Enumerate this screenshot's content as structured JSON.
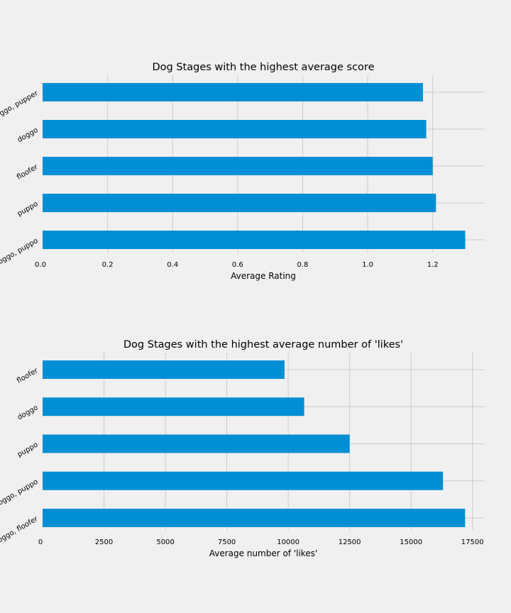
{
  "colors": {
    "background": "#f0f0f0",
    "bar": "#008fd5",
    "grid": "#cbcbcb"
  },
  "chart_data": [
    {
      "type": "bar",
      "orientation": "horizontal",
      "title": "Dog Stages with the highest average score",
      "xlabel": "Average Rating",
      "ylabel": "",
      "xlim": [
        0,
        1.36
      ],
      "xticks": [
        "0.0",
        "0.2",
        "0.4",
        "0.6",
        "0.8",
        "1.0",
        "1.2"
      ],
      "xtick_values": [
        0,
        0.2,
        0.4,
        0.6,
        0.8,
        1.0,
        1.2
      ],
      "categories": [
        "doggo, pupper",
        "doggo",
        "floofer",
        "puppo",
        "doggo, puppo"
      ],
      "values": [
        1.17,
        1.18,
        1.2,
        1.21,
        1.3
      ],
      "grid": true,
      "legend": false
    },
    {
      "type": "bar",
      "orientation": "horizontal",
      "title": "Dog Stages with the highest average number of 'likes'",
      "xlabel": "Average number of 'likes'",
      "ylabel": "",
      "xlim": [
        0,
        18000
      ],
      "xticks": [
        "0",
        "2500",
        "5000",
        "7500",
        "10000",
        "12500",
        "15000",
        "17500"
      ],
      "xtick_values": [
        0,
        2500,
        5000,
        7500,
        10000,
        12500,
        15000,
        17500
      ],
      "categories": [
        "floofer",
        "doggo",
        "puppo",
        "doggo, puppo",
        "doggo, floofer"
      ],
      "values": [
        9850,
        10650,
        12500,
        16300,
        17200
      ],
      "grid": true,
      "legend": false
    }
  ]
}
